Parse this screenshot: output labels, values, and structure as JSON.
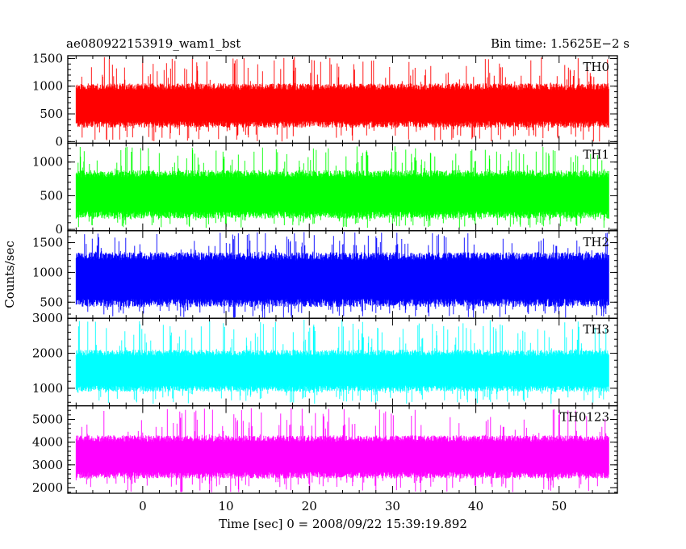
{
  "header": {
    "left_title": "ae080922153919_wam1_bst",
    "right_title": "Bin time: 1.5625E−2 s"
  },
  "chart_data": {
    "type": "line",
    "xlabel": "Time [sec] 0 = 2008/09/22 15:39:19.892",
    "ylabel": "Counts/sec",
    "xlim": [
      -9,
      57
    ],
    "x_range": [
      -8,
      56
    ],
    "x_ticks": [
      0,
      10,
      20,
      30,
      40,
      50
    ],
    "x_tick_labels": [
      "0",
      "10",
      "20",
      "30",
      "40",
      "50"
    ],
    "bin_time": 0.015625,
    "series": [
      {
        "name": "TH0",
        "color": "#ff0000",
        "ylim": [
          -30,
          1550
        ],
        "y_ticks": [
          0,
          500,
          1000,
          1500
        ],
        "y_tick_labels": [
          "0",
          "500",
          "1000",
          "1500"
        ],
        "typical_low": 250,
        "typical_high": 1050,
        "min": 0,
        "max": 1530
      },
      {
        "name": "TH1",
        "color": "#00ff00",
        "ylim": [
          -20,
          1280
        ],
        "y_ticks": [
          0,
          500,
          1000
        ],
        "y_tick_labels": [
          "0",
          "500",
          "1000"
        ],
        "typical_low": 160,
        "typical_high": 880,
        "min": 20,
        "max": 1240
      },
      {
        "name": "TH2",
        "color": "#0000ff",
        "ylim": [
          230,
          1700
        ],
        "y_ticks": [
          500,
          1000,
          1500
        ],
        "y_tick_labels": [
          "500",
          "1000",
          "1500"
        ],
        "typical_low": 420,
        "typical_high": 1340,
        "min": 240,
        "max": 1680
      },
      {
        "name": "TH3",
        "color": "#00ffff",
        "ylim": [
          500,
          3000
        ],
        "y_ticks": [
          1000,
          2000,
          3000
        ],
        "y_tick_labels": [
          "1000",
          "2000",
          "3000"
        ],
        "typical_low": 900,
        "typical_high": 2100,
        "min": 550,
        "max": 2980
      },
      {
        "name": "TH0123",
        "color": "#ff00ff",
        "ylim": [
          1750,
          5600
        ],
        "y_ticks": [
          2000,
          3000,
          4000,
          5000
        ],
        "y_tick_labels": [
          "2000",
          "3000",
          "4000",
          "5000"
        ],
        "typical_low": 2400,
        "typical_high": 4300,
        "min": 1800,
        "max": 5500
      }
    ]
  }
}
